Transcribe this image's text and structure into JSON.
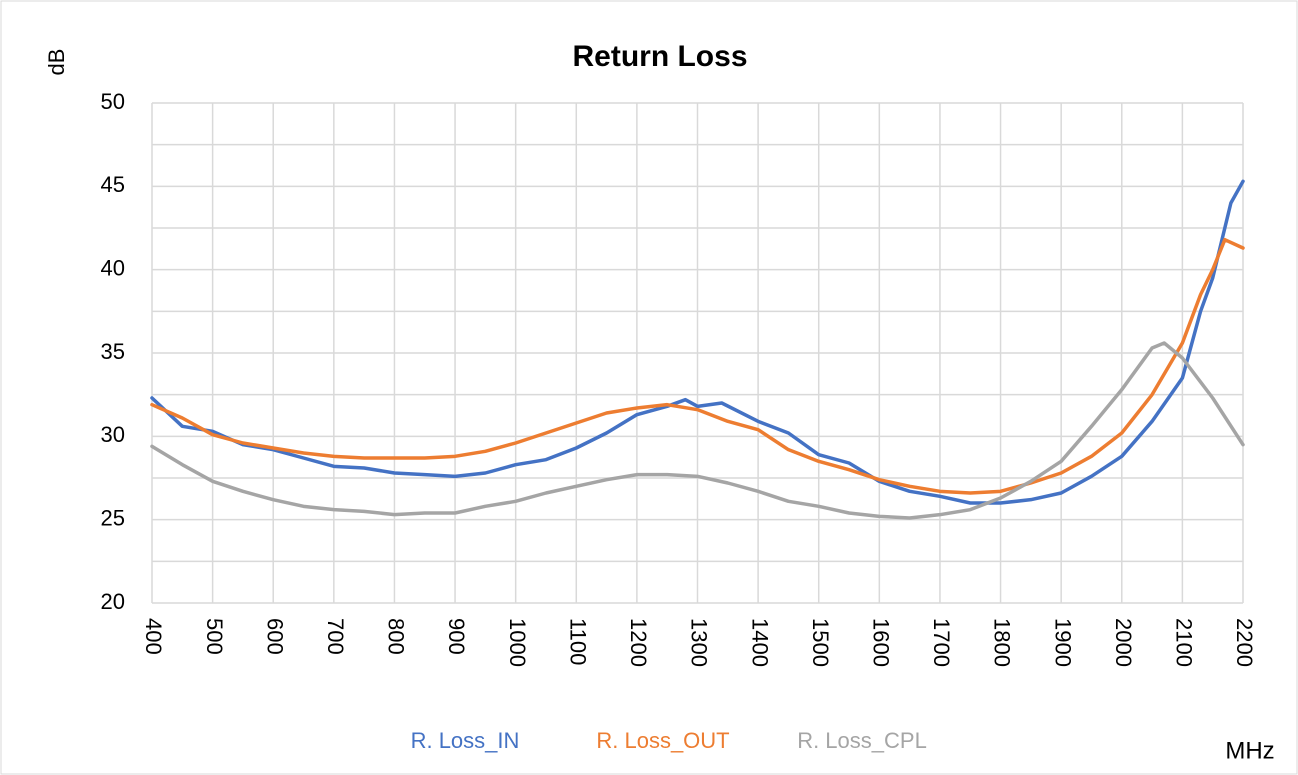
{
  "chart_data": {
    "type": "line",
    "title": "Return Loss",
    "x_label": "MHz",
    "y_label": "dB",
    "xlim": [
      400,
      2200
    ],
    "xticks": [
      400,
      500,
      600,
      700,
      800,
      900,
      1000,
      1100,
      1200,
      1300,
      1400,
      1500,
      1600,
      1700,
      1800,
      1900,
      2000,
      2100,
      2200
    ],
    "ylim": [
      20,
      50
    ],
    "yticks": [
      20,
      25,
      30,
      35,
      40,
      45,
      50
    ],
    "y_minor_ticks": [
      22.5,
      27.5,
      32.5,
      37.5,
      42.5,
      47.5
    ],
    "grid": true,
    "legend": "bottom",
    "series": [
      {
        "name": "R. Loss_IN",
        "color": "#4472c4",
        "x": [
          400,
          450,
          500,
          550,
          600,
          650,
          700,
          750,
          800,
          850,
          900,
          950,
          1000,
          1050,
          1100,
          1150,
          1200,
          1250,
          1280,
          1300,
          1340,
          1400,
          1450,
          1500,
          1550,
          1600,
          1650,
          1700,
          1750,
          1800,
          1850,
          1900,
          1950,
          2000,
          2050,
          2100,
          2130,
          2150,
          2180,
          2200
        ],
        "values": [
          32.3,
          30.6,
          30.3,
          29.5,
          29.2,
          28.7,
          28.2,
          28.1,
          27.8,
          27.7,
          27.6,
          27.8,
          28.3,
          28.6,
          29.3,
          30.2,
          31.3,
          31.8,
          32.2,
          31.8,
          32.0,
          30.9,
          30.2,
          28.9,
          28.4,
          27.3,
          26.7,
          26.4,
          26.0,
          26.0,
          26.2,
          26.6,
          27.6,
          28.8,
          30.9,
          33.5,
          37.5,
          39.5,
          44.0,
          45.3
        ]
      },
      {
        "name": "R. Loss_OUT",
        "color": "#ed7d31",
        "x": [
          400,
          450,
          500,
          550,
          600,
          650,
          700,
          750,
          800,
          850,
          900,
          950,
          1000,
          1050,
          1100,
          1150,
          1200,
          1250,
          1300,
          1350,
          1400,
          1450,
          1500,
          1550,
          1600,
          1650,
          1700,
          1750,
          1800,
          1850,
          1900,
          1950,
          2000,
          2050,
          2100,
          2130,
          2150,
          2170,
          2200
        ],
        "values": [
          31.9,
          31.1,
          30.1,
          29.6,
          29.3,
          29.0,
          28.8,
          28.7,
          28.7,
          28.7,
          28.8,
          29.1,
          29.6,
          30.2,
          30.8,
          31.4,
          31.7,
          31.9,
          31.6,
          30.9,
          30.4,
          29.2,
          28.5,
          28.0,
          27.4,
          27.0,
          26.7,
          26.6,
          26.7,
          27.2,
          27.8,
          28.8,
          30.2,
          32.5,
          35.6,
          38.5,
          40.0,
          41.8,
          41.3
        ]
      },
      {
        "name": "R. Loss_CPL",
        "color": "#a5a5a5",
        "x": [
          400,
          450,
          500,
          550,
          600,
          650,
          700,
          750,
          800,
          850,
          900,
          950,
          1000,
          1050,
          1100,
          1150,
          1200,
          1250,
          1300,
          1350,
          1400,
          1450,
          1500,
          1550,
          1600,
          1650,
          1700,
          1750,
          1800,
          1850,
          1900,
          1950,
          2000,
          2050,
          2070,
          2100,
          2150,
          2200
        ],
        "values": [
          29.4,
          28.3,
          27.3,
          26.7,
          26.2,
          25.8,
          25.6,
          25.5,
          25.3,
          25.4,
          25.4,
          25.8,
          26.1,
          26.6,
          27.0,
          27.4,
          27.7,
          27.7,
          27.6,
          27.2,
          26.7,
          26.1,
          25.8,
          25.4,
          25.2,
          25.1,
          25.3,
          25.6,
          26.3,
          27.3,
          28.5,
          30.6,
          32.8,
          35.3,
          35.6,
          34.7,
          32.3,
          29.5
        ]
      }
    ]
  }
}
